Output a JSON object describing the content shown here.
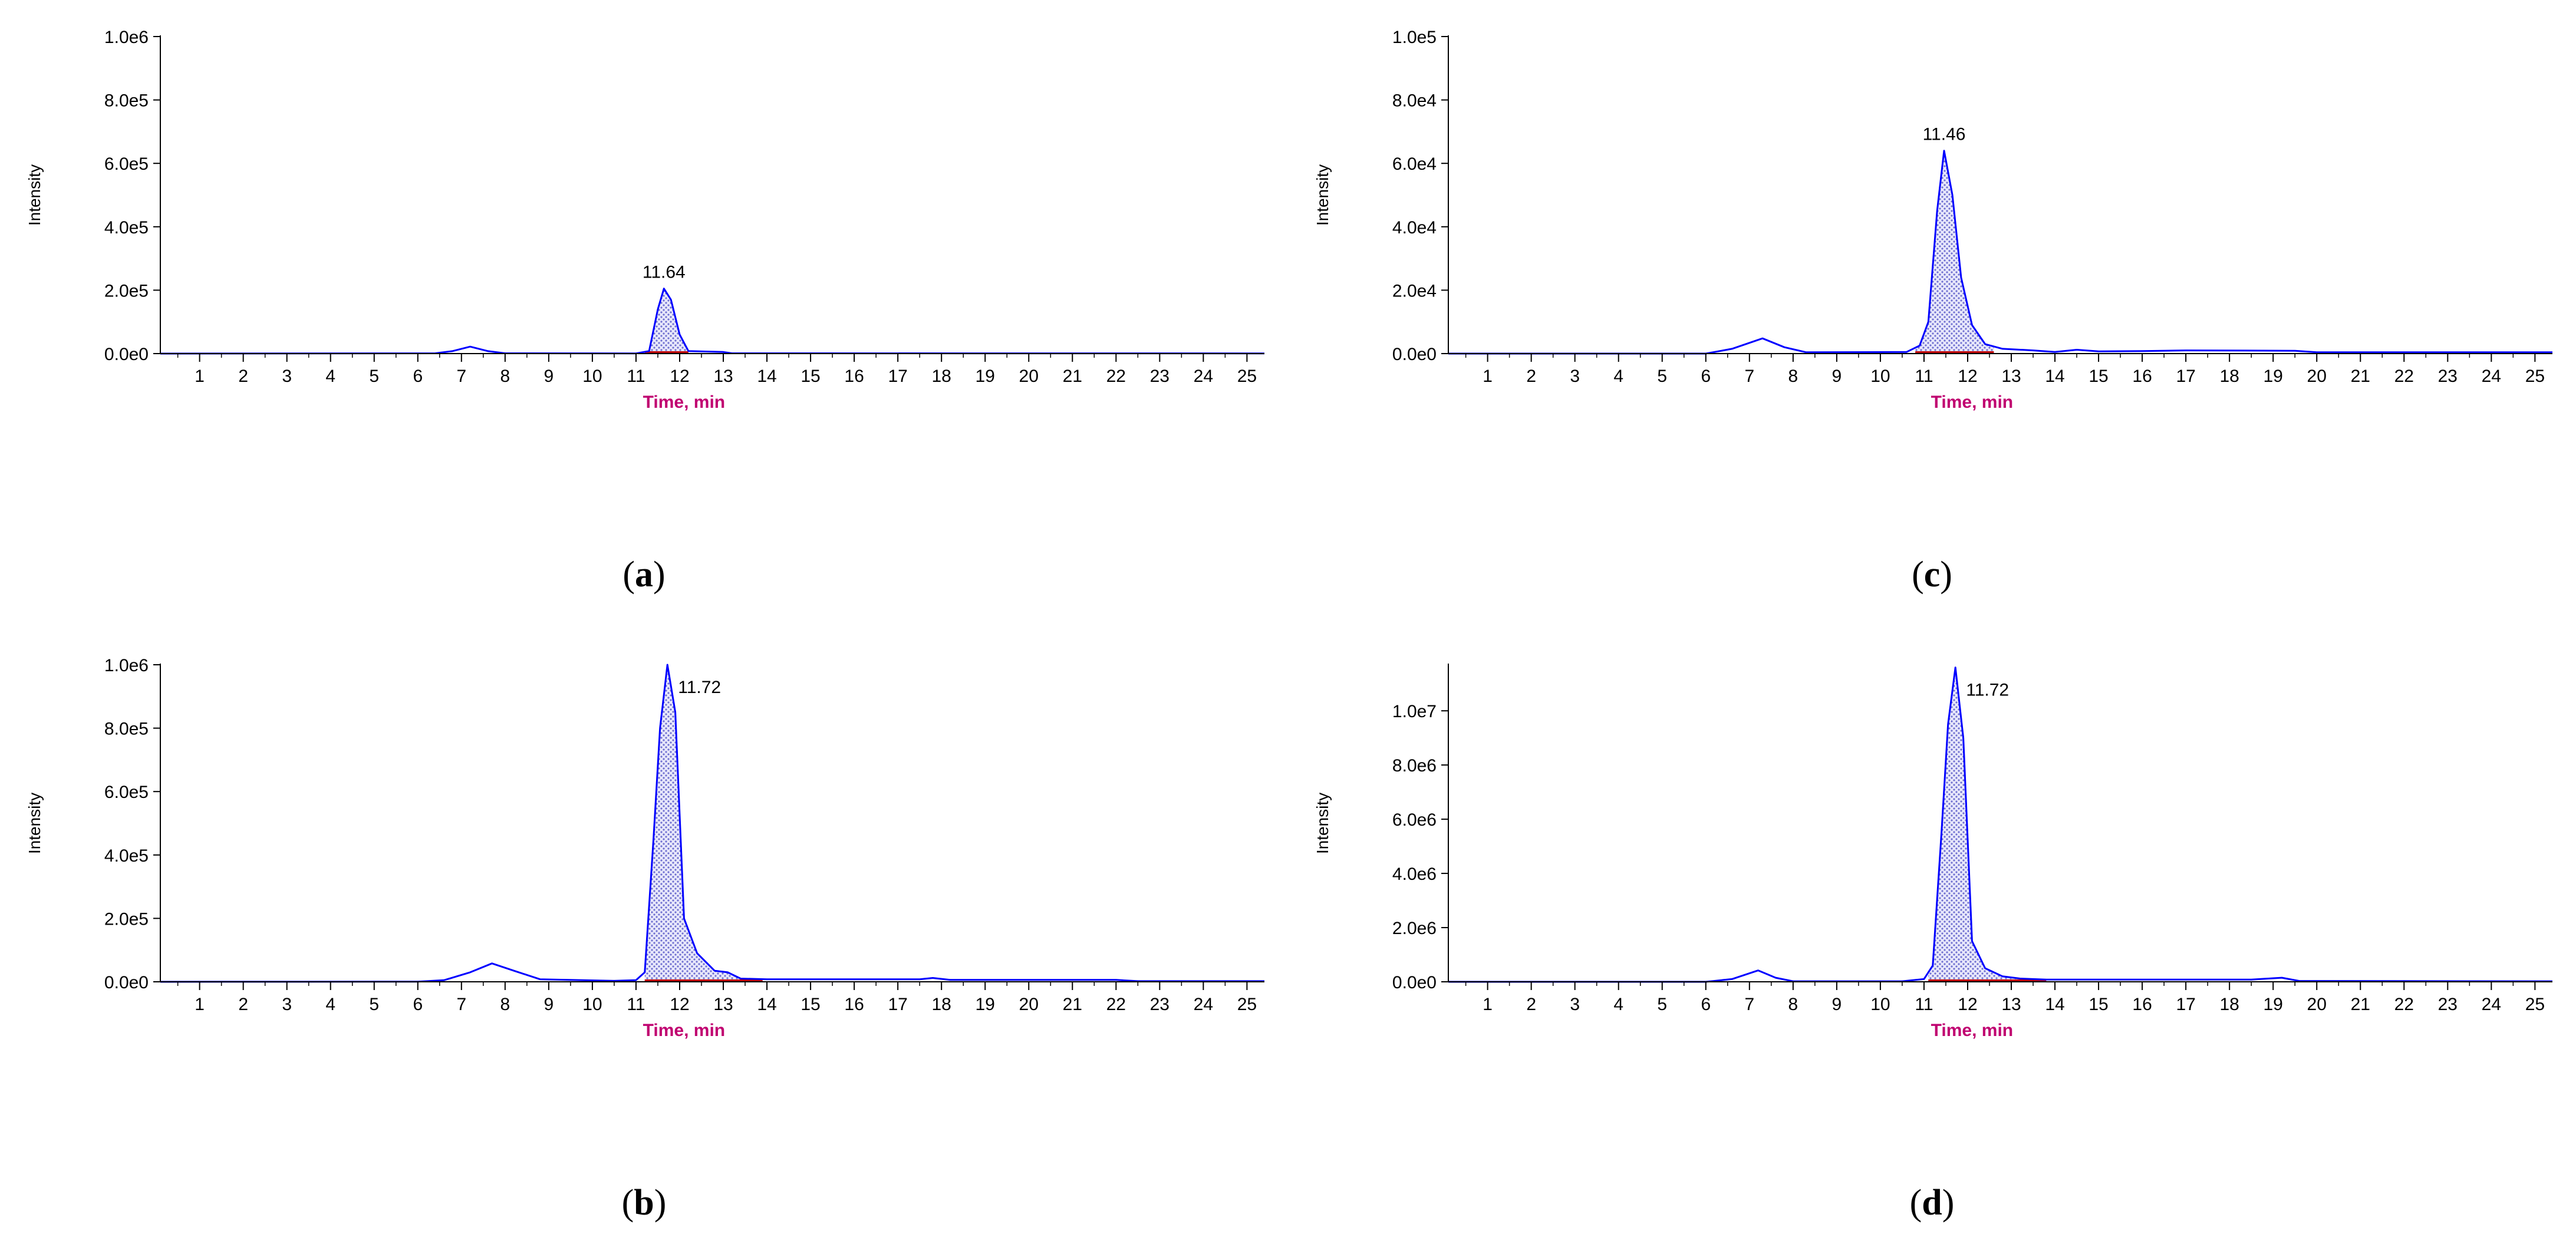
{
  "colors": {
    "trace": "#0000ff",
    "peak_fill": "#6f6fd0",
    "baseline_mark": "#c00000",
    "xlabel": "#c00070",
    "axis": "#000000"
  },
  "chart_data": [
    {
      "panel": "a",
      "type": "line",
      "label_prefix": "(",
      "label_letter": "a",
      "label_suffix": ")",
      "xlabel": "Time, min",
      "ylabel": "Intensity",
      "xlim": [
        0.1,
        25.4
      ],
      "ylim": [
        0,
        1000000
      ],
      "xticks": [
        1,
        2,
        3,
        4,
        5,
        6,
        7,
        8,
        9,
        10,
        11,
        12,
        13,
        14,
        15,
        16,
        17,
        18,
        19,
        20,
        21,
        22,
        23,
        24,
        25
      ],
      "yticks": [
        0,
        200000,
        400000,
        600000,
        800000,
        1000000
      ],
      "ytick_labels": [
        "0.0e0",
        "2.0e5",
        "4.0e5",
        "6.0e5",
        "8.0e5",
        "1.0e6"
      ],
      "peak_label": "11.64",
      "peak_x": 11.64,
      "peak_y": 205000,
      "peak_range": [
        11.2,
        12.2
      ],
      "x": [
        0.1,
        6.4,
        6.8,
        7.2,
        7.6,
        8.0,
        11.0,
        11.3,
        11.5,
        11.64,
        11.8,
        12.0,
        12.2,
        13.0,
        13.2,
        25.4
      ],
      "y": [
        0,
        1000,
        8000,
        22000,
        8000,
        1000,
        500,
        8000,
        140000,
        205000,
        170000,
        60000,
        8000,
        5000,
        1000,
        500
      ]
    },
    {
      "panel": "c",
      "type": "line",
      "label_prefix": "(",
      "label_letter": "c",
      "label_suffix": ")",
      "xlabel": "Time, min",
      "ylabel": "Intensity",
      "xlim": [
        0.1,
        25.4
      ],
      "ylim": [
        0,
        100000
      ],
      "xticks": [
        1,
        2,
        3,
        4,
        5,
        6,
        7,
        8,
        9,
        10,
        11,
        12,
        13,
        14,
        15,
        16,
        17,
        18,
        19,
        20,
        21,
        22,
        23,
        24,
        25
      ],
      "yticks": [
        0,
        20000,
        40000,
        60000,
        80000,
        100000
      ],
      "ytick_labels": [
        "0.0e0",
        "2.0e4",
        "4.0e4",
        "6.0e4",
        "8.0e4",
        "1.0e5"
      ],
      "peak_label": "11.46",
      "peak_x": 11.46,
      "peak_y": 64000,
      "peak_range": [
        10.8,
        12.6
      ],
      "x": [
        0.1,
        6.0,
        6.6,
        7.3,
        7.8,
        8.3,
        10.6,
        10.9,
        11.1,
        11.3,
        11.46,
        11.65,
        11.85,
        12.1,
        12.4,
        12.8,
        13.5,
        14.0,
        14.5,
        15.0,
        16.0,
        17.0,
        19.5,
        20.0,
        25.4
      ],
      "y": [
        0,
        0,
        1500,
        4800,
        2000,
        400,
        500,
        2500,
        10000,
        45000,
        64000,
        50000,
        24000,
        9000,
        3000,
        1500,
        1000,
        500,
        1200,
        700,
        800,
        1000,
        900,
        400,
        400
      ]
    },
    {
      "panel": "b",
      "type": "line",
      "label_prefix": "(",
      "label_letter": "b",
      "label_suffix": ")",
      "xlabel": "Time, min",
      "ylabel": "Intensity",
      "xlim": [
        0.1,
        25.4
      ],
      "ylim": [
        0,
        1000000
      ],
      "xticks": [
        1,
        2,
        3,
        4,
        5,
        6,
        7,
        8,
        9,
        10,
        11,
        12,
        13,
        14,
        15,
        16,
        17,
        18,
        19,
        20,
        21,
        22,
        23,
        24,
        25
      ],
      "yticks": [
        0,
        200000,
        400000,
        600000,
        800000,
        1000000
      ],
      "ytick_labels": [
        "0.0e0",
        "2.0e5",
        "4.0e5",
        "6.0e5",
        "8.0e5",
        "1.0e6"
      ],
      "peak_label": "11.72",
      "peak_x": 11.72,
      "peak_y": 1000000,
      "peak_range": [
        11.2,
        13.9
      ],
      "x": [
        0.1,
        6.0,
        6.6,
        7.2,
        7.7,
        8.2,
        8.8,
        10.5,
        11.0,
        11.2,
        11.4,
        11.55,
        11.72,
        11.9,
        12.1,
        12.4,
        12.8,
        13.1,
        13.4,
        14.0,
        17.5,
        17.8,
        18.2,
        22.0,
        22.5,
        25.4
      ],
      "y": [
        0,
        500,
        5000,
        30000,
        58000,
        35000,
        8000,
        3000,
        5000,
        30000,
        450000,
        800000,
        1000000,
        850000,
        200000,
        90000,
        35000,
        30000,
        10000,
        8000,
        8000,
        12000,
        6000,
        6000,
        2000,
        2000
      ]
    },
    {
      "panel": "d",
      "type": "line",
      "label_prefix": "(",
      "label_letter": "d",
      "label_suffix": ")",
      "xlabel": "Time, min",
      "ylabel": "Intensity",
      "xlim": [
        0.1,
        25.4
      ],
      "ylim": [
        0,
        11700000
      ],
      "xticks": [
        1,
        2,
        3,
        4,
        5,
        6,
        7,
        8,
        9,
        10,
        11,
        12,
        13,
        14,
        15,
        16,
        17,
        18,
        19,
        20,
        21,
        22,
        23,
        24,
        25
      ],
      "yticks": [
        0,
        2000000,
        4000000,
        6000000,
        8000000,
        10000000
      ],
      "ytick_labels": [
        "0.0e0",
        "2.0e6",
        "4.0e6",
        "6.0e6",
        "8.0e6",
        "1.0e7"
      ],
      "peak_label": "11.72",
      "peak_x": 11.72,
      "peak_y": 11600000,
      "peak_range": [
        11.1,
        13.8
      ],
      "x": [
        0.1,
        6.0,
        6.6,
        7.2,
        7.6,
        8.0,
        10.5,
        11.0,
        11.2,
        11.4,
        11.55,
        11.72,
        11.9,
        12.1,
        12.4,
        12.8,
        13.2,
        13.8,
        18.5,
        19.2,
        19.6,
        25.4
      ],
      "y": [
        0,
        0,
        100000,
        420000,
        150000,
        20000,
        20000,
        100000,
        600000,
        5500000,
        9500000,
        11600000,
        9000000,
        1500000,
        500000,
        200000,
        120000,
        80000,
        80000,
        150000,
        30000,
        20000
      ]
    }
  ]
}
